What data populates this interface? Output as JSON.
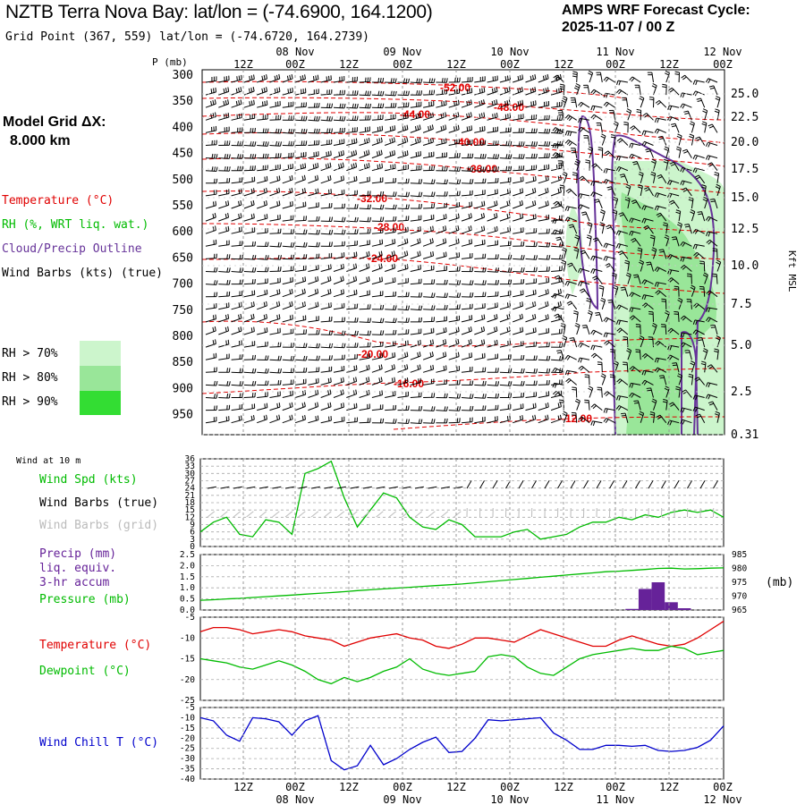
{
  "header": {
    "title": "NZTB Terra Nova Bay:  lat/lon = (-74.6900, 164.1200)",
    "subtitle": "Grid Point (367, 559) lat/lon = (-74.6720, 164.2739)",
    "cycle_line1": "AMPS WRF Forecast Cycle:",
    "cycle_line2": "2025-11-07 / 00  Z",
    "model_grid_line1": "Model Grid ΔX:",
    "model_grid_line2": "8.000 km"
  },
  "legend": {
    "temperature": "Temperature (°C)",
    "rh": "RH (%, WRT liq. wat.)",
    "cloud": "Cloud/Precip Outline",
    "wind_barbs": "Wind Barbs (kts) (true)",
    "rh70": "RH > 70%",
    "rh80": "RH > 80%",
    "rh90": "RH > 90%",
    "wind10m": "Wind at 10 m",
    "wind_spd": "Wind Spd (kts)",
    "wind_barbs_true": "Wind Barbs (true)",
    "wind_barbs_grid": "Wind Barbs (grid)",
    "precip1": "Precip (mm)",
    "precip2": "liq. equiv.",
    "precip3": "3-hr accum",
    "pressure": "Pressure (mb)",
    "mb_unit": "(mb)",
    "temp2": "Temperature (°C)",
    "dewpoint": "Dewpoint (°C)",
    "windchill": "Wind Chill T (°C)"
  },
  "colors": {
    "temperature": "#e00000",
    "rh70": "#ccf5cc",
    "rh80": "#99e699",
    "rh90": "#33dd33",
    "cloud": "#663399",
    "wind_spd": "#00bb00",
    "grid_barbs": "#bbbbbb",
    "precip": "#662299",
    "pressure": "#00bb00",
    "dewpoint": "#00bb00",
    "windchill": "#0000cc",
    "gridline": "#999999"
  },
  "chart_data": {
    "type": "meteogram",
    "time_axis": {
      "top_hours": [
        "12Z",
        "00Z",
        "12Z",
        "00Z",
        "12Z",
        "00Z",
        "12Z",
        "00Z",
        "12Z",
        "00Z"
      ],
      "top_dates": [
        "08 Nov",
        "09 Nov",
        "10 Nov",
        "11 Nov",
        "12 Nov"
      ],
      "bottom_hours": [
        "12Z",
        "00Z",
        "12Z",
        "00Z",
        "12Z",
        "00Z",
        "12Z",
        "00Z",
        "12Z",
        "00Z"
      ],
      "bottom_dates": [
        "08 Nov",
        "09 Nov",
        "10 Nov",
        "11 Nov",
        "12 Nov"
      ]
    },
    "cross_section": {
      "pressure_label": "P (mb)",
      "pressure_ticks": [
        "300",
        "350",
        "400",
        "450",
        "500",
        "550",
        "600",
        "650",
        "700",
        "750",
        "800",
        "850",
        "900",
        "950"
      ],
      "height_label": "Kft MSL",
      "height_ticks": [
        "25.0",
        "22.5",
        "20.0",
        "17.5",
        "15.0",
        "12.5",
        "10.0",
        "7.5",
        "5.0",
        "2.5",
        "0.31"
      ],
      "temperature_contour_labels": [
        "-52.00",
        "-48.00",
        "-44.00",
        "-40.00",
        "-36.00",
        "-32.00",
        "-28.00",
        "-24.00",
        "-20.00",
        "-16.00",
        "-12.00"
      ]
    },
    "wind_panel": {
      "ylim": [
        0,
        36
      ],
      "yticks": [
        "36",
        "33",
        "30",
        "27",
        "24",
        "21",
        "18",
        "15",
        "12",
        "9",
        "6",
        "3",
        "0"
      ],
      "wind_speed_kts": [
        6,
        10,
        12,
        5,
        4,
        11,
        10,
        5,
        30,
        32,
        35,
        20,
        8,
        15,
        22,
        20,
        12,
        8,
        7,
        11,
        9,
        4,
        4,
        4,
        6,
        7,
        3,
        4,
        5,
        8,
        10,
        10,
        12,
        11,
        13,
        12,
        14,
        15,
        14,
        15,
        12
      ]
    },
    "precip_pressure_panel": {
      "precip_ylim": [
        0,
        2.5
      ],
      "precip_yticks": [
        "2.5",
        "2.0",
        "1.5",
        "1.0",
        "0.5",
        "0.0"
      ],
      "pressure_ylim": [
        965,
        985
      ],
      "pressure_yticks": [
        "985",
        "980",
        "975",
        "970",
        "965"
      ],
      "precip_mm": [
        0,
        0,
        0,
        0,
        0,
        0,
        0,
        0,
        0,
        0,
        0,
        0,
        0,
        0,
        0,
        0,
        0,
        0,
        0,
        0,
        0,
        0,
        0,
        0,
        0,
        0,
        0,
        0,
        0,
        0,
        0,
        0,
        0,
        0.05,
        0.95,
        1.25,
        0.35,
        0.08,
        0,
        0,
        0
      ],
      "pressure_mb": [
        968.5,
        968.7,
        969.0,
        969.2,
        969.5,
        969.8,
        970.1,
        970.4,
        970.7,
        971.0,
        971.3,
        971.6,
        972.0,
        972.3,
        972.6,
        972.9,
        973.2,
        973.5,
        973.8,
        974.1,
        974.4,
        974.8,
        975.2,
        975.6,
        976.0,
        976.4,
        976.8,
        977.2,
        977.6,
        978.0,
        978.4,
        978.8,
        979.0,
        979.3,
        979.6,
        980.0,
        980.1,
        979.8,
        979.9,
        980.1,
        980.2
      ]
    },
    "temp_dewpoint_panel": {
      "ylim": [
        -25,
        -5
      ],
      "yticks": [
        "-5",
        "-10",
        "-15",
        "-20",
        "-25"
      ],
      "temperature_c": [
        -8.5,
        -7.5,
        -7.5,
        -8.0,
        -9.0,
        -8.5,
        -8.0,
        -8.5,
        -9.5,
        -10.0,
        -10.5,
        -12.0,
        -11.0,
        -10.0,
        -9.5,
        -9.0,
        -10.0,
        -10.5,
        -12.0,
        -12.5,
        -11.5,
        -10.0,
        -10.0,
        -10.5,
        -11.0,
        -9.5,
        -8.0,
        -9.0,
        -10.0,
        -11.0,
        -12.0,
        -12.0,
        -10.5,
        -9.5,
        -10.5,
        -11.5,
        -12.0,
        -11.5,
        -10.0,
        -8.0,
        -6.0
      ],
      "dewpoint_c": [
        -15.0,
        -15.5,
        -16.0,
        -17.0,
        -17.5,
        -16.5,
        -15.5,
        -16.5,
        -18.0,
        -20.0,
        -21.0,
        -19.5,
        -20.5,
        -19.5,
        -18.0,
        -17.0,
        -15.0,
        -17.5,
        -18.5,
        -19.0,
        -18.5,
        -18.0,
        -14.5,
        -14.0,
        -14.5,
        -17.0,
        -18.5,
        -19.0,
        -17.0,
        -15.0,
        -14.0,
        -13.5,
        -13.0,
        -12.5,
        -13.0,
        -13.0,
        -12.0,
        -12.5,
        -14.0,
        -13.5,
        -13.0
      ]
    },
    "windchill_panel": {
      "ylim": [
        -40,
        -5
      ],
      "yticks": [
        "-5",
        "-10",
        "-15",
        "-20",
        "-25",
        "-30",
        "-35",
        "-40"
      ],
      "windchill_c": [
        -10.0,
        -11.5,
        -18.5,
        -21.5,
        -10.0,
        -10.5,
        -12.0,
        -18.5,
        -11.5,
        -9.0,
        -31.0,
        -35.5,
        -33.5,
        -23.5,
        -33.0,
        -30.0,
        -25.5,
        -22.0,
        -19.5,
        -27.0,
        -26.5,
        -20.0,
        -11.0,
        -11.5,
        -11.0,
        -10.5,
        -10.0,
        -17.5,
        -21.0,
        -25.5,
        -25.5,
        -23.5,
        -23.5,
        -24.0,
        -23.5,
        -26.0,
        -26.5,
        -26.0,
        -24.5,
        -21.0,
        -14.0
      ]
    }
  }
}
